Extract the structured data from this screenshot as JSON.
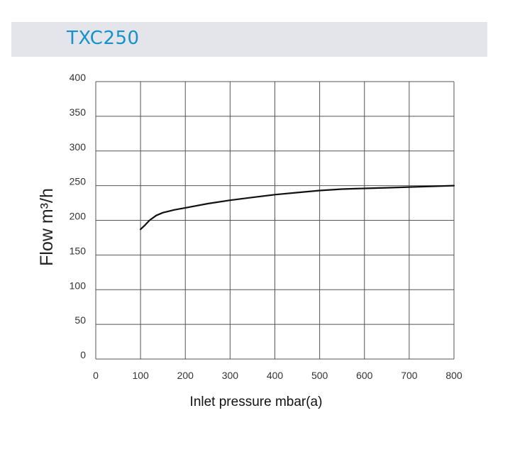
{
  "chart_data": {
    "type": "line",
    "title": "TXC250",
    "xlabel": "Inlet pressure mbar(a)",
    "ylabel": "Flow m³/h",
    "xlim": [
      0,
      800
    ],
    "ylim": [
      0,
      400
    ],
    "xticks": [
      "0",
      "100",
      "200",
      "300",
      "400",
      "500",
      "600",
      "700",
      "800"
    ],
    "yticks": [
      "0",
      "50",
      "100",
      "150",
      "200",
      "250",
      "300",
      "350",
      "400"
    ],
    "grid": true,
    "series": [
      {
        "x": [
          100,
          110,
          120,
          135,
          150,
          175,
          200,
          250,
          300,
          350,
          400,
          450,
          500,
          550,
          600,
          650,
          700,
          750,
          800
        ],
        "y": [
          187,
          193,
          200,
          207,
          211,
          215,
          218,
          224,
          229,
          233,
          237,
          240,
          243,
          245,
          246,
          247,
          248,
          249,
          250
        ]
      }
    ]
  },
  "colors": {
    "title_bar": "#e3e5ea",
    "title_text": "#1592c9",
    "grid": "#555555",
    "line": "#111111"
  }
}
